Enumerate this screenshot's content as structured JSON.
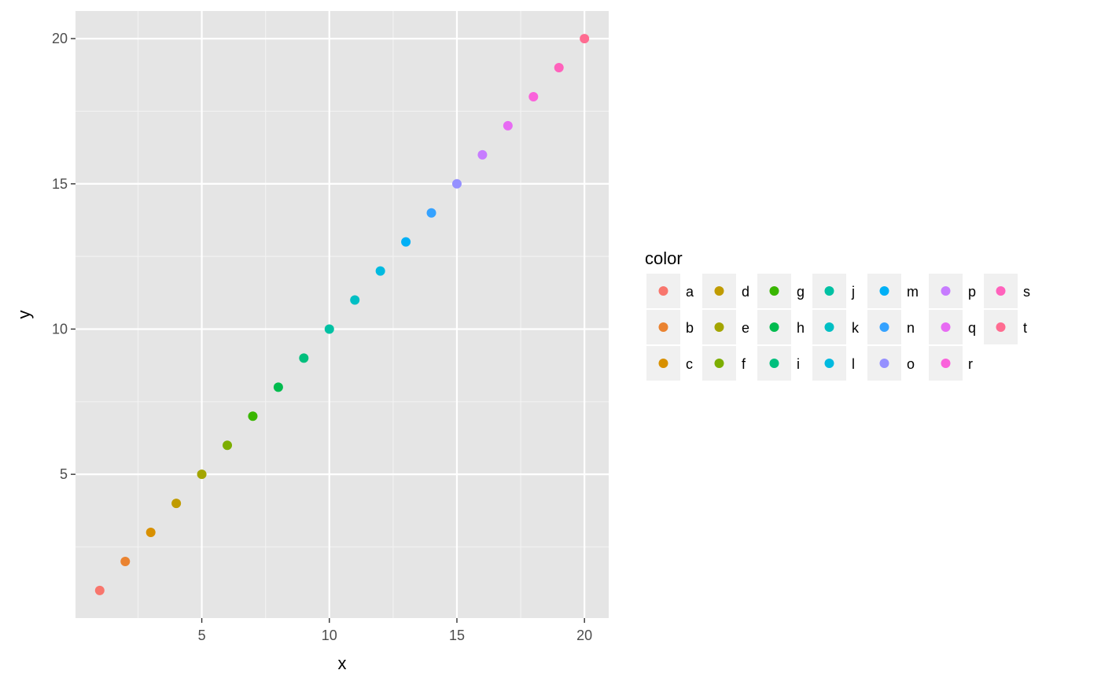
{
  "chart_data": {
    "type": "scatter",
    "xlabel": "x",
    "ylabel": "y",
    "xlim": [
      0.05,
      20.95
    ],
    "ylim": [
      0.05,
      20.95
    ],
    "x_ticks": [
      5,
      10,
      15,
      20
    ],
    "y_ticks": [
      5,
      10,
      15,
      20
    ],
    "x_tick_labels": [
      "5",
      "10",
      "15",
      "20"
    ],
    "y_tick_labels": [
      "5",
      "10",
      "15",
      "20"
    ],
    "grid": true,
    "panel_background": "#e5e5e5",
    "legend": {
      "title": "color",
      "position": "right",
      "columns": 7,
      "rows": 3
    },
    "points": [
      {
        "x": 1,
        "y": 1,
        "label": "a",
        "color": "#F8766D"
      },
      {
        "x": 2,
        "y": 2,
        "label": "b",
        "color": "#EA8331"
      },
      {
        "x": 3,
        "y": 3,
        "label": "c",
        "color": "#D89000"
      },
      {
        "x": 4,
        "y": 4,
        "label": "d",
        "color": "#C09B00"
      },
      {
        "x": 5,
        "y": 5,
        "label": "e",
        "color": "#A3A500"
      },
      {
        "x": 6,
        "y": 6,
        "label": "f",
        "color": "#7CAE00"
      },
      {
        "x": 7,
        "y": 7,
        "label": "g",
        "color": "#39B600"
      },
      {
        "x": 8,
        "y": 8,
        "label": "h",
        "color": "#00BB4E"
      },
      {
        "x": 9,
        "y": 9,
        "label": "i",
        "color": "#00BF7D"
      },
      {
        "x": 10,
        "y": 10,
        "label": "j",
        "color": "#00C1A3"
      },
      {
        "x": 11,
        "y": 11,
        "label": "k",
        "color": "#00BFC4"
      },
      {
        "x": 12,
        "y": 12,
        "label": "l",
        "color": "#00BAE0"
      },
      {
        "x": 13,
        "y": 13,
        "label": "m",
        "color": "#00B0F6"
      },
      {
        "x": 14,
        "y": 14,
        "label": "n",
        "color": "#35A2FF"
      },
      {
        "x": 15,
        "y": 15,
        "label": "o",
        "color": "#9590FF"
      },
      {
        "x": 16,
        "y": 16,
        "label": "p",
        "color": "#C77CFF"
      },
      {
        "x": 17,
        "y": 17,
        "label": "q",
        "color": "#E76BF3"
      },
      {
        "x": 18,
        "y": 18,
        "label": "r",
        "color": "#FA62DB"
      },
      {
        "x": 19,
        "y": 19,
        "label": "s",
        "color": "#FF62BC"
      },
      {
        "x": 20,
        "y": 20,
        "label": "t",
        "color": "#FF6C91"
      }
    ]
  }
}
